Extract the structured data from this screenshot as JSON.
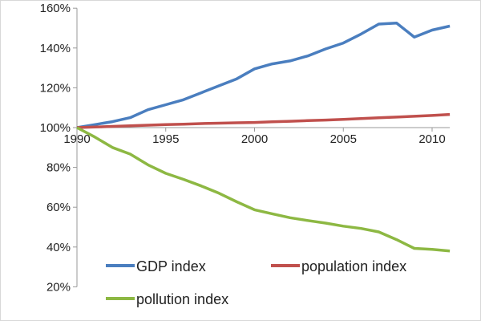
{
  "chart_data": {
    "type": "line",
    "title": "",
    "xlabel": "",
    "ylabel": "",
    "x": [
      1990,
      1991,
      1992,
      1993,
      1994,
      1995,
      1996,
      1997,
      1998,
      1999,
      2000,
      2001,
      2002,
      2003,
      2004,
      2005,
      2006,
      2007,
      2008,
      2009,
      2010,
      2011
    ],
    "xticks": [
      "1990",
      "1995",
      "2000",
      "2005",
      "2010"
    ],
    "yticks": [
      "160%",
      "140%",
      "120%",
      "100%",
      "80%",
      "60%",
      "40%",
      "20%"
    ],
    "ylim": [
      20,
      160
    ],
    "grid": false,
    "legend_position": "bottom-inside",
    "series": [
      {
        "name": "GDP index",
        "color": "#4a7ebf",
        "values": [
          100,
          101.5,
          103,
          105,
          109,
          111.5,
          114,
          117.5,
          121,
          124.5,
          129.5,
          132,
          133.5,
          136,
          139.5,
          142.5,
          147,
          152,
          152.5,
          145.5,
          149,
          151
        ]
      },
      {
        "name": "population index",
        "color": "#c0504d",
        "values": [
          100,
          100.3,
          100.6,
          100.9,
          101.2,
          101.5,
          101.7,
          102,
          102.2,
          102.4,
          102.6,
          102.9,
          103.2,
          103.5,
          103.8,
          104.1,
          104.5,
          104.9,
          105.3,
          105.7,
          106.1,
          106.6
        ]
      },
      {
        "name": "pollution index",
        "color": "#8db843",
        "values": [
          100,
          95.3,
          90,
          86.7,
          81.3,
          77,
          74,
          70.7,
          67,
          62.7,
          58.7,
          56.7,
          54.7,
          53.3,
          52,
          50.5,
          49.3,
          47.6,
          43.7,
          39.3,
          38.8,
          38
        ]
      }
    ]
  }
}
